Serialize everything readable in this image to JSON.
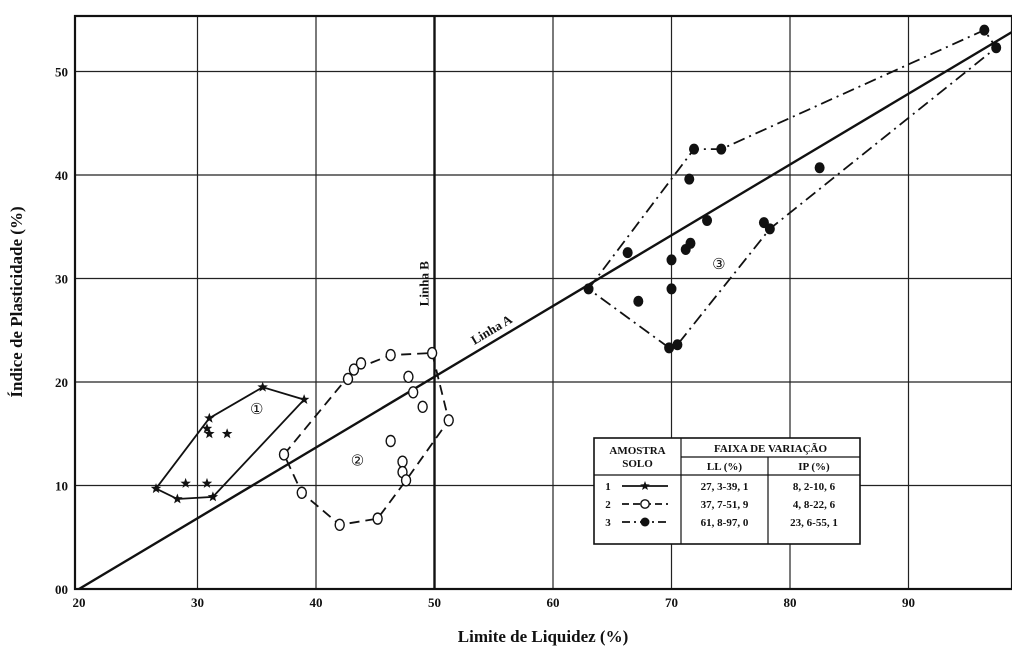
{
  "chart_data": {
    "type": "scatter",
    "xlabel": "Limite de Liquidez (%)",
    "ylabel": "Índice de Plasticidade (%)",
    "xlim": [
      20,
      99
    ],
    "ylim": [
      0,
      55
    ],
    "x_ticks": [
      "20",
      "30",
      "40",
      "50",
      "60",
      "70",
      "80",
      "90"
    ],
    "y_ticks": [
      "00",
      "10",
      "20",
      "30",
      "40",
      "50"
    ],
    "grid": true,
    "lines": {
      "linha_a": {
        "label": "Linha A",
        "points": [
          [
            20,
            0
          ],
          [
            99,
            54
          ]
        ]
      },
      "linha_b": {
        "label": "Linha B",
        "x": 50
      }
    },
    "zone_labels": [
      {
        "label": "①",
        "x": 35.0,
        "y": 17.5
      },
      {
        "label": "②",
        "x": 43.5,
        "y": 12.5
      },
      {
        "label": "③",
        "x": 74.0,
        "y": 31.5
      }
    ],
    "series": [
      {
        "name": "1",
        "marker": "star",
        "dash": "solid",
        "points": [
          [
            31,
            16.5
          ],
          [
            30.8,
            15.5
          ],
          [
            31,
            15
          ],
          [
            32.5,
            15
          ],
          [
            29,
            10.2
          ],
          [
            30.8,
            10.2
          ],
          [
            35.5,
            19.5
          ],
          [
            39,
            18.3
          ],
          [
            26.5,
            9.7
          ],
          [
            28.3,
            8.7
          ],
          [
            31.3,
            8.9
          ]
        ],
        "envelope": [
          [
            26.5,
            9.7
          ],
          [
            31,
            16.5
          ],
          [
            35.5,
            19.5
          ],
          [
            39,
            18.3
          ],
          [
            31.3,
            8.9
          ],
          [
            28.3,
            8.7
          ],
          [
            26.5,
            9.7
          ]
        ]
      },
      {
        "name": "2",
        "marker": "open-circle",
        "dash": "dashed",
        "points": [
          [
            37.3,
            13
          ],
          [
            38.8,
            9.3
          ],
          [
            42,
            6.2
          ],
          [
            45.2,
            6.8
          ],
          [
            42.7,
            20.3
          ],
          [
            43.2,
            21.2
          ],
          [
            43.8,
            21.8
          ],
          [
            46.3,
            22.6
          ],
          [
            49.8,
            22.8
          ],
          [
            47.8,
            20.5
          ],
          [
            48.2,
            19
          ],
          [
            49,
            17.6
          ],
          [
            51.2,
            16.3
          ],
          [
            46.3,
            14.3
          ],
          [
            47.3,
            12.3
          ],
          [
            47.3,
            11.3
          ],
          [
            47.6,
            10.5
          ]
        ],
        "envelope": [
          [
            37.3,
            13
          ],
          [
            43.2,
            21.2
          ],
          [
            46.3,
            22.6
          ],
          [
            49.8,
            22.8
          ],
          [
            51.2,
            16.3
          ],
          [
            47.6,
            10.5
          ],
          [
            45.2,
            6.8
          ],
          [
            42,
            6.2
          ],
          [
            38.8,
            9.3
          ],
          [
            37.3,
            13
          ]
        ]
      },
      {
        "name": "3",
        "marker": "filled-circle",
        "dash": "dash-dot",
        "points": [
          [
            63,
            29
          ],
          [
            66.3,
            32.5
          ],
          [
            67.2,
            27.8
          ],
          [
            69.8,
            23.3
          ],
          [
            70.5,
            23.6
          ],
          [
            70,
            29
          ],
          [
            70,
            31.8
          ],
          [
            71.2,
            32.8
          ],
          [
            71.6,
            33.4
          ],
          [
            71.5,
            39.6
          ],
          [
            71.9,
            42.5
          ],
          [
            74.2,
            42.5
          ],
          [
            73,
            35.6
          ],
          [
            77.8,
            35.4
          ],
          [
            78.3,
            34.8
          ],
          [
            82.5,
            40.7
          ],
          [
            96.4,
            54
          ],
          [
            97.4,
            52.3
          ]
        ],
        "envelope": [
          [
            63,
            29
          ],
          [
            71.9,
            42.5
          ],
          [
            74.2,
            42.5
          ],
          [
            96.4,
            54
          ],
          [
            97.4,
            52.3
          ],
          [
            78.3,
            34.8
          ],
          [
            70.5,
            23.6
          ],
          [
            69.8,
            23.3
          ],
          [
            63,
            29
          ]
        ]
      }
    ],
    "legend_table": {
      "header_col1": "AMOSTRA\nSOLO",
      "header_group": "FAIXA DE VARIAÇÃO",
      "col_ll": "LL (%)",
      "col_ip": "IP (%)",
      "placement": "bottom-right",
      "rows": [
        {
          "id": "1",
          "ll": "27, 3-39, 1",
          "ip": "8, 2-10, 6"
        },
        {
          "id": "2",
          "ll": "37, 7-51, 9",
          "ip": "4, 8-22, 6"
        },
        {
          "id": "3",
          "ll": "61, 8-97, 0",
          "ip": "23, 6-55, 1"
        }
      ]
    }
  }
}
